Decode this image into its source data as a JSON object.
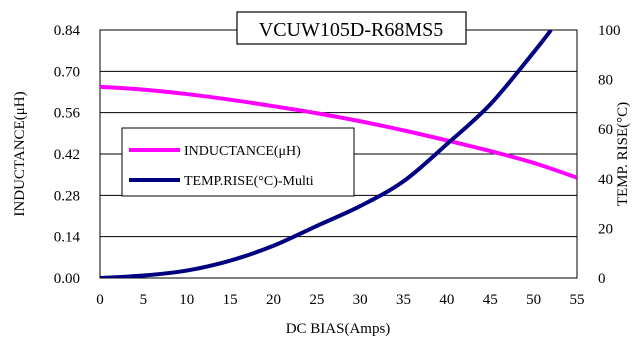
{
  "chart_data": {
    "type": "line",
    "title": "VCUW105D-R68MS5",
    "xlabel": "DC BIAS(Amps)",
    "ylabel_left": "INDUCTANCE(μH)",
    "ylabel_right": "TEMP. RISE(°C)",
    "xlim": [
      0,
      55
    ],
    "ylim_left": [
      0,
      0.84
    ],
    "ylim_right": [
      0,
      100
    ],
    "x_ticks": [
      "0",
      "5",
      "10",
      "15",
      "20",
      "25",
      "30",
      "35",
      "40",
      "45",
      "50",
      "55"
    ],
    "y_left_ticks": [
      "0.00",
      "0.14",
      "0.28",
      "0.42",
      "0.56",
      "0.70",
      "0.84"
    ],
    "y_right_ticks": [
      "0",
      "20",
      "40",
      "60",
      "80",
      "100"
    ],
    "grid": "horizontal",
    "legend_position": "center-left",
    "series": [
      {
        "name": "INDUCTANCE(μH)",
        "axis": "left",
        "color": "#ff00ff",
        "x": [
          0,
          5,
          10,
          15,
          20,
          25,
          30,
          35,
          40,
          45,
          50,
          55
        ],
        "values": [
          0.648,
          0.638,
          0.623,
          0.604,
          0.582,
          0.558,
          0.531,
          0.5,
          0.466,
          0.43,
          0.39,
          0.34
        ]
      },
      {
        "name": "TEMP.RISE(°C)-Multi",
        "axis": "right",
        "color": "#000080",
        "x": [
          0,
          5,
          10,
          15,
          20,
          25,
          30,
          35,
          40,
          45,
          50,
          52
        ],
        "values": [
          0,
          1,
          3,
          7,
          13,
          21,
          29,
          39,
          54,
          70,
          91,
          100
        ]
      }
    ]
  }
}
